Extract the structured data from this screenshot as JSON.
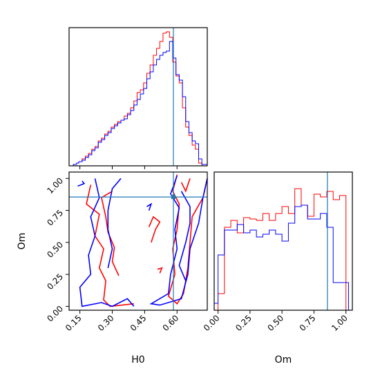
{
  "chart_data": [
    {
      "type": "histogram",
      "panel": "H0-marginal",
      "xlim": [
        0.1,
        0.74
      ],
      "truth_x": 0.583,
      "series": [
        {
          "name": "",
          "color": "#ff0000",
          "x": [
            0.1,
            0.12,
            0.135,
            0.145,
            0.16,
            0.175,
            0.19,
            0.205,
            0.22,
            0.235,
            0.25,
            0.265,
            0.28,
            0.295,
            0.31,
            0.325,
            0.34,
            0.355,
            0.37,
            0.385,
            0.4,
            0.415,
            0.43,
            0.445,
            0.46,
            0.475,
            0.49,
            0.505,
            0.52,
            0.535,
            0.55,
            0.565,
            0.58,
            0.595,
            0.61,
            0.625,
            0.64,
            0.655,
            0.67,
            0.685,
            0.7,
            0.715,
            0.74
          ],
          "y": [
            0,
            0.01,
            0.02,
            0.03,
            0.05,
            0.07,
            0.09,
            0.12,
            0.14,
            0.18,
            0.2,
            0.23,
            0.25,
            0.28,
            0.3,
            0.32,
            0.33,
            0.36,
            0.38,
            0.42,
            0.47,
            0.53,
            0.55,
            0.6,
            0.67,
            0.73,
            0.8,
            0.85,
            0.9,
            0.96,
            0.97,
            0.93,
            0.75,
            0.65,
            0.6,
            0.42,
            0.28,
            0.22,
            0.15,
            0.12,
            0.02,
            0.0
          ]
        },
        {
          "name": "",
          "color": "#0000ff",
          "x": [
            0.1,
            0.12,
            0.135,
            0.145,
            0.16,
            0.175,
            0.19,
            0.205,
            0.22,
            0.235,
            0.25,
            0.265,
            0.28,
            0.295,
            0.31,
            0.325,
            0.34,
            0.355,
            0.37,
            0.385,
            0.4,
            0.415,
            0.43,
            0.445,
            0.46,
            0.475,
            0.49,
            0.505,
            0.52,
            0.535,
            0.55,
            0.565,
            0.58,
            0.595,
            0.61,
            0.625,
            0.64,
            0.655,
            0.67,
            0.685,
            0.7,
            0.715,
            0.74
          ],
          "y": [
            0,
            0.01,
            0.02,
            0.03,
            0.04,
            0.06,
            0.08,
            0.11,
            0.13,
            0.17,
            0.19,
            0.22,
            0.24,
            0.27,
            0.29,
            0.31,
            0.33,
            0.34,
            0.37,
            0.4,
            0.44,
            0.48,
            0.52,
            0.56,
            0.63,
            0.68,
            0.73,
            0.77,
            0.8,
            0.82,
            0.83,
            0.9,
            0.78,
            0.66,
            0.62,
            0.5,
            0.32,
            0.24,
            0.18,
            0.16,
            0.05,
            0.01
          ]
        }
      ]
    },
    {
      "type": "contour",
      "panel": "H0-Om-joint",
      "xlabel": "H0",
      "ylabel": "Om",
      "xlim": [
        0.1,
        0.74
      ],
      "ylim": [
        -0.03,
        1.05
      ],
      "xticks": [
        "0.15",
        "0.30",
        "0.45",
        "0.60"
      ],
      "xtick_values": [
        0.15,
        0.3,
        0.45,
        0.6
      ],
      "yticks": [
        "0.00",
        "0.25",
        "0.50",
        "0.75",
        "1.00"
      ],
      "ytick_values": [
        0.0,
        0.25,
        0.5,
        0.75,
        1.0
      ],
      "truth": {
        "x": 0.583,
        "y": 0.855
      },
      "series": [
        {
          "name": "",
          "color": "#ff0000",
          "contours": [
            [
              [
                0.6,
                1.03
              ],
              [
                0.58,
                0.9
              ],
              [
                0.61,
                0.8
              ],
              [
                0.6,
                0.6
              ],
              [
                0.58,
                0.45
              ],
              [
                0.59,
                0.25
              ],
              [
                0.56,
                0.08
              ],
              [
                0.6,
                0.02
              ],
              [
                0.63,
                0.1
              ],
              [
                0.65,
                0.3
              ],
              [
                0.66,
                0.5
              ],
              [
                0.67,
                0.7
              ],
              [
                0.72,
                0.85
              ],
              [
                0.74,
                1.0
              ]
            ],
            [
              [
                0.2,
                0.95
              ],
              [
                0.18,
                0.8
              ],
              [
                0.24,
                0.72
              ],
              [
                0.22,
                0.55
              ],
              [
                0.26,
                0.45
              ],
              [
                0.24,
                0.3
              ],
              [
                0.27,
                0.2
              ],
              [
                0.26,
                0.05
              ],
              [
                0.29,
                0.0
              ],
              [
                0.4,
                0.02
              ]
            ],
            [
              [
                0.3,
                0.9
              ],
              [
                0.25,
                0.85
              ],
              [
                0.27,
                0.7
              ],
              [
                0.28,
                0.58
              ],
              [
                0.31,
                0.46
              ],
              [
                0.3,
                0.35
              ],
              [
                0.33,
                0.24
              ]
            ],
            [
              [
                0.48,
                0.5
              ],
              [
                0.5,
                0.6
              ],
              [
                0.52,
                0.66
              ],
              [
                0.49,
                0.7
              ],
              [
                0.47,
                0.62
              ]
            ],
            [
              [
                0.51,
                0.29
              ],
              [
                0.53,
                0.3
              ],
              [
                0.52,
                0.26
              ]
            ],
            [
              [
                0.62,
                0.97
              ],
              [
                0.64,
                0.9
              ],
              [
                0.66,
                1.0
              ]
            ]
          ]
        },
        {
          "name": "",
          "color": "#0000ff",
          "contours": [
            [
              [
                0.14,
                0.94
              ],
              [
                0.17,
                0.96
              ],
              [
                0.16,
                0.98
              ]
            ],
            [
              [
                0.6,
                1.02
              ],
              [
                0.57,
                0.88
              ],
              [
                0.61,
                0.77
              ],
              [
                0.59,
                0.6
              ],
              [
                0.6,
                0.45
              ],
              [
                0.57,
                0.25
              ],
              [
                0.56,
                0.1
              ],
              [
                0.48,
                0.02
              ],
              [
                0.52,
                0.01
              ],
              [
                0.62,
                0.06
              ],
              [
                0.65,
                0.25
              ],
              [
                0.66,
                0.45
              ],
              [
                0.7,
                0.65
              ],
              [
                0.72,
                0.85
              ],
              [
                0.74,
                1.0
              ]
            ],
            [
              [
                0.22,
                1.0
              ],
              [
                0.24,
                0.85
              ],
              [
                0.2,
                0.7
              ],
              [
                0.22,
                0.55
              ],
              [
                0.19,
                0.4
              ],
              [
                0.2,
                0.25
              ],
              [
                0.15,
                0.15
              ],
              [
                0.16,
                0.0
              ],
              [
                0.25,
                0.03
              ],
              [
                0.3,
                0.0
              ],
              [
                0.37,
                0.06
              ],
              [
                0.4,
                0.0
              ]
            ],
            [
              [
                0.34,
                1.0
              ],
              [
                0.3,
                0.92
              ],
              [
                0.28,
                0.75
              ],
              [
                0.28,
                0.6
              ],
              [
                0.3,
                0.45
              ],
              [
                0.28,
                0.3
              ]
            ],
            [
              [
                0.46,
                0.78
              ],
              [
                0.48,
                0.8
              ],
              [
                0.47,
                0.75
              ]
            ],
            [
              [
                0.62,
                0.9
              ],
              [
                0.66,
                0.78
              ],
              [
                0.66,
                0.65
              ],
              [
                0.64,
                0.5
              ],
              [
                0.61,
                0.32
              ],
              [
                0.64,
                0.2
              ]
            ]
          ]
        }
      ]
    },
    {
      "type": "histogram",
      "panel": "Om-marginal",
      "xlabel": "Om",
      "xlim": [
        -0.03,
        1.05
      ],
      "xticks": [
        "0.00",
        "0.25",
        "0.50",
        "0.75",
        "1.00"
      ],
      "xtick_values": [
        0.0,
        0.25,
        0.5,
        0.75,
        1.0
      ],
      "truth_x": 0.855,
      "series": [
        {
          "name": "",
          "color": "#ff0000",
          "x": [
            -0.03,
            0.0,
            0.05,
            0.1,
            0.15,
            0.2,
            0.25,
            0.3,
            0.35,
            0.4,
            0.45,
            0.5,
            0.55,
            0.6,
            0.65,
            0.7,
            0.75,
            0.8,
            0.85,
            0.9,
            0.95,
            1.0,
            1.02
          ],
          "y": [
            0,
            0.12,
            0.6,
            0.65,
            0.56,
            0.67,
            0.66,
            0.65,
            0.7,
            0.65,
            0.7,
            0.75,
            0.7,
            0.88,
            0.76,
            0.68,
            0.84,
            0.82,
            0.86,
            0.8,
            0.83,
            0.0
          ]
        },
        {
          "name": "",
          "color": "#0000ff",
          "x": [
            -0.03,
            0.0,
            0.05,
            0.1,
            0.15,
            0.2,
            0.25,
            0.3,
            0.35,
            0.4,
            0.45,
            0.5,
            0.55,
            0.6,
            0.65,
            0.7,
            0.75,
            0.8,
            0.85,
            0.9,
            0.95,
            1.0,
            1.02
          ],
          "y": [
            0.05,
            0.4,
            0.58,
            0.58,
            0.62,
            0.56,
            0.58,
            0.53,
            0.55,
            0.58,
            0.55,
            0.5,
            0.63,
            0.75,
            0.76,
            0.66,
            0.66,
            0.7,
            0.6,
            0.2,
            0.2,
            0.2
          ]
        }
      ]
    }
  ],
  "colors": {
    "truth": "#1f77b4",
    "series_a": "#ff0000",
    "series_b": "#0000ff"
  }
}
